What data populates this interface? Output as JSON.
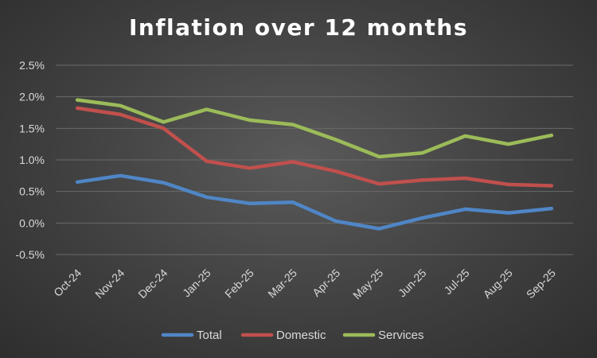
{
  "chart_data": {
    "type": "line",
    "title": "Inflation over 12 months",
    "categories": [
      "Oct-24",
      "Nov-24",
      "Dec-24",
      "Jan-25",
      "Feb-25",
      "Mar-25",
      "Apr-25",
      "May-25",
      "Jun-25",
      "Jul-25",
      "Aug-25",
      "Sep-25"
    ],
    "y_ticks": [
      "-0.5%",
      "0.0%",
      "0.5%",
      "1.0%",
      "1.5%",
      "2.0%",
      "2.5%"
    ],
    "ylim": [
      -0.5,
      2.5
    ],
    "y_unit": "%",
    "grid": true,
    "legend_position": "bottom",
    "series": [
      {
        "name": "Total",
        "color": "#4f86c6",
        "values": [
          0.65,
          0.75,
          0.64,
          0.41,
          0.31,
          0.33,
          0.03,
          -0.09,
          0.08,
          0.22,
          0.16,
          0.23
        ]
      },
      {
        "name": "Domestic",
        "color": "#c0504d",
        "values": [
          1.82,
          1.72,
          1.5,
          0.98,
          0.87,
          0.97,
          0.82,
          0.62,
          0.68,
          0.71,
          0.61,
          0.59
        ]
      },
      {
        "name": "Services",
        "color": "#9bbb59",
        "values": [
          1.95,
          1.86,
          1.6,
          1.8,
          1.63,
          1.56,
          1.32,
          1.05,
          1.11,
          1.38,
          1.25,
          1.39
        ]
      }
    ]
  }
}
